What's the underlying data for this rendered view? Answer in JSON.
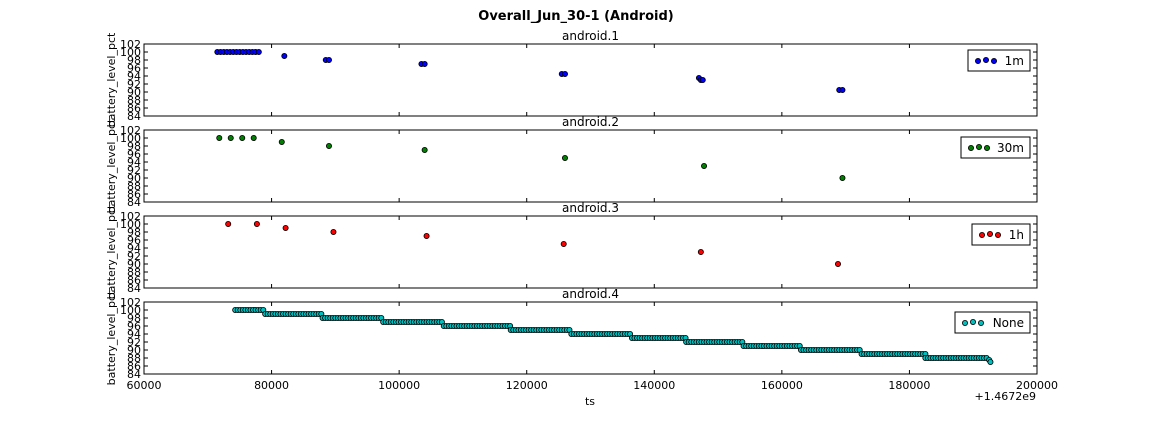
{
  "figure": {
    "title": "Overall_Jun_30-1 (Android)",
    "xlabel": "ts",
    "x_offset_label": "+1.4672e9",
    "x_ticks": [
      "60000",
      "80000",
      "100000",
      "120000",
      "140000",
      "160000",
      "180000",
      "200000"
    ],
    "y_ticks": [
      "84",
      "86",
      "88",
      "90",
      "92",
      "94",
      "96",
      "98",
      "100",
      "102"
    ]
  },
  "chart_data": [
    {
      "type": "scatter",
      "title": "android.1",
      "ylabel": "battery_level_pct",
      "xlim": [
        60000,
        200000
      ],
      "ylim": [
        84,
        102
      ],
      "grid": false,
      "legend_position": "right",
      "series": [
        {
          "name": "1m",
          "color": "#0000ff",
          "x": [
            71500,
            72000,
            72500,
            73000,
            73500,
            74000,
            74500,
            75000,
            75500,
            76000,
            76500,
            77000,
            77500,
            78000,
            82000,
            88500,
            89000,
            103500,
            104000,
            125500,
            126000,
            147000,
            147300,
            147600,
            169000,
            169500
          ],
          "y": [
            100,
            100,
            100,
            100,
            100,
            100,
            100,
            100,
            100,
            100,
            100,
            100,
            100,
            100,
            99,
            98,
            98,
            97,
            97,
            94.5,
            94.5,
            93.5,
            93,
            93,
            90.5,
            90.5
          ]
        }
      ]
    },
    {
      "type": "scatter",
      "title": "android.2",
      "ylabel": "battery_level_pct",
      "xlim": [
        60000,
        200000
      ],
      "ylim": [
        84,
        102
      ],
      "grid": false,
      "legend_position": "right",
      "series": [
        {
          "name": "30m",
          "color": "#008000",
          "x": [
            71800,
            73600,
            75400,
            77200,
            81600,
            89000,
            104000,
            126000,
            147800,
            169500
          ],
          "y": [
            100,
            100,
            100,
            100,
            99,
            98,
            97,
            95,
            93,
            90
          ]
        }
      ]
    },
    {
      "type": "scatter",
      "title": "android.3",
      "ylabel": "battery_level_pct",
      "xlim": [
        60000,
        200000
      ],
      "ylim": [
        84,
        102
      ],
      "grid": false,
      "legend_position": "right",
      "series": [
        {
          "name": "1h",
          "color": "#ff0000",
          "x": [
            73200,
            77700,
            82200,
            89700,
            104300,
            125800,
            147300,
            168800
          ],
          "y": [
            100,
            100,
            99,
            98,
            97,
            95,
            93,
            90
          ]
        }
      ]
    },
    {
      "type": "scatter",
      "title": "android.4",
      "ylabel": "battery_level_pct",
      "xlim": [
        60000,
        200000
      ],
      "ylim": [
        84,
        102
      ],
      "grid": false,
      "legend_position": "right",
      "series": [
        {
          "name": "None",
          "color": "#00bfbf",
          "segments": [
            {
              "x0": 74300,
              "x1": 79000,
              "y": 100
            },
            {
              "x0": 79000,
              "x1": 88000,
              "y": 99
            },
            {
              "x0": 88000,
              "x1": 97500,
              "y": 98
            },
            {
              "x0": 97500,
              "x1": 107000,
              "y": 97
            },
            {
              "x0": 107000,
              "x1": 117500,
              "y": 96
            },
            {
              "x0": 117500,
              "x1": 127000,
              "y": 95
            },
            {
              "x0": 127000,
              "x1": 136500,
              "y": 94
            },
            {
              "x0": 136500,
              "x1": 145000,
              "y": 93
            },
            {
              "x0": 145000,
              "x1": 154000,
              "y": 92
            },
            {
              "x0": 154000,
              "x1": 163000,
              "y": 91
            },
            {
              "x0": 163000,
              "x1": 172500,
              "y": 90
            },
            {
              "x0": 172500,
              "x1": 182500,
              "y": 89
            },
            {
              "x0": 182500,
              "x1": 192300,
              "y": 88
            }
          ],
          "tail": {
            "x": [
              192500,
              192700
            ],
            "y": [
              87.5,
              87
            ]
          },
          "step": 400
        }
      ]
    }
  ]
}
